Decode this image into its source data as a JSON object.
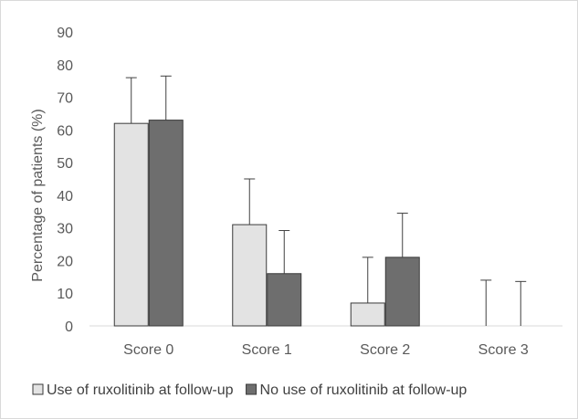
{
  "chart_data": {
    "type": "bar",
    "title": "",
    "xlabel": "",
    "ylabel": "Percentage of patients (%)",
    "ylim": [
      0,
      90
    ],
    "yticks": [
      0,
      10,
      20,
      30,
      40,
      50,
      60,
      70,
      80,
      90
    ],
    "grid": false,
    "legend_position": "bottom",
    "categories": [
      "Score 0",
      "Score 1",
      "Score 2",
      "Score 3"
    ],
    "series": [
      {
        "name": "Use of ruxolitinib at follow-up",
        "color": "#e3e3e3",
        "values": [
          62,
          31,
          7,
          0
        ],
        "error_upper": [
          76,
          45,
          21,
          14
        ]
      },
      {
        "name": "No use of ruxolitinib at follow-up",
        "color": "#6e6e6e",
        "values": [
          63,
          16,
          21,
          0
        ],
        "error_upper": [
          76.5,
          29.2,
          34.5,
          13.6
        ]
      }
    ]
  }
}
